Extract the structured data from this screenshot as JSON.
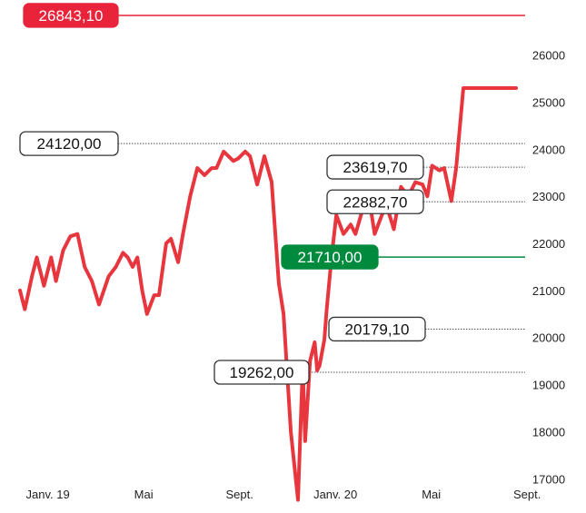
{
  "chart_data": {
    "type": "line",
    "title": "",
    "xlabel": "",
    "ylabel": "",
    "ylim": [
      16600,
      26900
    ],
    "y_ticks": [
      "26000",
      "25000",
      "24000",
      "23000",
      "22000",
      "21000",
      "20000",
      "19000",
      "18000",
      "17000"
    ],
    "y_tick_values": [
      26000,
      25000,
      24000,
      23000,
      22000,
      21000,
      20000,
      19000,
      18000,
      17000
    ],
    "x_ticks": [
      "Janv. 19",
      "Mai",
      "Sept.",
      "Janv. 20",
      "Mai",
      "Sept."
    ],
    "x_tick_months": [
      0,
      4,
      8,
      12,
      16,
      20
    ],
    "x_range_months": [
      -0.1,
      20.6
    ],
    "grid": false,
    "series": [
      {
        "name": "",
        "color": "#e8363e",
        "x_months": [
          -0.1,
          0.1,
          0.4,
          0.6,
          0.9,
          1.2,
          1.4,
          1.7,
          2.0,
          2.3,
          2.6,
          2.9,
          3.2,
          3.4,
          3.6,
          3.9,
          4.2,
          4.4,
          4.6,
          4.8,
          5.0,
          5.2,
          5.5,
          5.7,
          6.0,
          6.2,
          6.5,
          6.7,
          7.0,
          7.3,
          7.6,
          7.9,
          8.1,
          8.4,
          8.6,
          8.8,
          9.0,
          9.3,
          9.5,
          9.8,
          10.1,
          10.4,
          10.7,
          10.9,
          11.2,
          11.5,
          11.7,
          11.8,
          12.0,
          12.2,
          12.3,
          12.4,
          12.6,
          12.7,
          12.9,
          13.1,
          13.4,
          13.7,
          13.9,
          14.3,
          14.5,
          14.7,
          15.0,
          15.2,
          15.5,
          15.8,
          16.1,
          16.4,
          16.7,
          16.9,
          17.1,
          17.4,
          17.6,
          17.9,
          18.1,
          18.4,
          18.7,
          19.0,
          19.3,
          19.6,
          19.9,
          20.1,
          20.4,
          20.6
        ],
        "values": [
          21000,
          20600,
          21300,
          21700,
          21100,
          21700,
          21200,
          21850,
          22150,
          22200,
          21500,
          21200,
          20700,
          21000,
          21300,
          21500,
          21800,
          21700,
          21500,
          21700,
          21000,
          20500,
          20900,
          20900,
          22000,
          22100,
          21600,
          22200,
          23000,
          23600,
          23450,
          23600,
          23600,
          23950,
          23850,
          23750,
          23800,
          23950,
          23850,
          23250,
          23850,
          23300,
          21150,
          20500,
          18000,
          16550,
          19400,
          17800,
          19500,
          19900,
          19300,
          19400,
          19950,
          20600,
          21700,
          22600,
          22200,
          22400,
          22200,
          22900,
          22850,
          22200,
          22600,
          22800,
          22300,
          23200,
          23000,
          23300,
          23250,
          23000,
          23650,
          23550,
          23600,
          22900,
          23600,
          25300,
          25300,
          25300,
          25300,
          25300,
          25300,
          25300,
          25300,
          25300
        ]
      }
    ],
    "annotations": [
      {
        "label": "26843,10",
        "value": 26843.1,
        "style": "record"
      },
      {
        "label": "24120,00",
        "value": 24120.0,
        "style": "level"
      },
      {
        "label": "23619,70",
        "value": 23619.7,
        "style": "level"
      },
      {
        "label": "22882,70",
        "value": 22882.7,
        "style": "level"
      },
      {
        "label": "21710,00",
        "value": 21710.0,
        "style": "current"
      },
      {
        "label": "20179,10",
        "value": 20179.1,
        "style": "level"
      },
      {
        "label": "19262,00",
        "value": 19262.0,
        "style": "level"
      }
    ],
    "colors": {
      "line": "#e8363e",
      "record": "#e8233a",
      "current": "#008a3e",
      "level_line": "#555555",
      "box_border": "#333333"
    }
  }
}
